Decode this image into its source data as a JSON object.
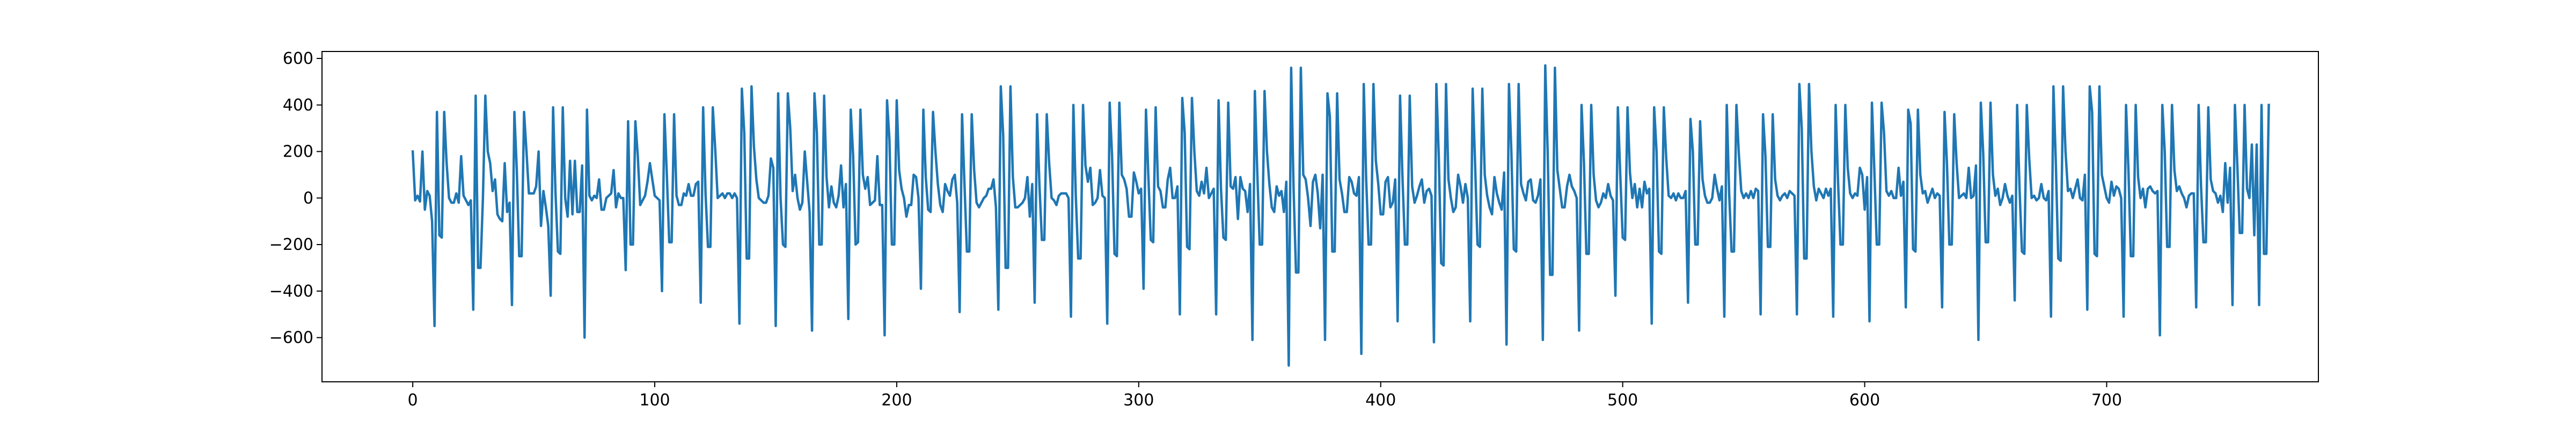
{
  "chart_data": {
    "type": "line",
    "title": "",
    "xlabel": "",
    "ylabel": "",
    "xlim": [
      -37.5,
      787.5
    ],
    "ylim": [
      -790,
      630
    ],
    "x_ticks": [
      0,
      100,
      200,
      300,
      400,
      500,
      600,
      700
    ],
    "y_ticks": [
      -600,
      -400,
      -200,
      0,
      200,
      400,
      600
    ],
    "x_tick_labels": [
      "0",
      "100",
      "200",
      "300",
      "400",
      "500",
      "600",
      "700"
    ],
    "y_tick_labels": [
      "−600",
      "−400",
      "−200",
      "0",
      "200",
      "400",
      "600"
    ],
    "grid": false,
    "legend": "none",
    "line_color": "#1f77b4",
    "series": [
      {
        "x_start": 0,
        "x_step": 1,
        "values": [
          200,
          -10,
          10,
          -15,
          200,
          -50,
          30,
          10,
          -100,
          -550,
          370,
          -160,
          -170,
          370,
          150,
          0,
          -20,
          -20,
          20,
          -20,
          180,
          10,
          -10,
          -30,
          -10,
          -480,
          440,
          -300,
          -300,
          0,
          440,
          200,
          150,
          30,
          80,
          -70,
          -90,
          -100,
          150,
          -60,
          -20,
          -460,
          370,
          120,
          -250,
          -250,
          370,
          200,
          20,
          20,
          20,
          50,
          200,
          -120,
          30,
          -40,
          -120,
          -420,
          390,
          20,
          -230,
          -240,
          390,
          0,
          -80,
          160,
          -70,
          160,
          -60,
          -60,
          140,
          -600,
          380,
          10,
          -10,
          10,
          0,
          80,
          -50,
          -50,
          0,
          10,
          20,
          120,
          -40,
          20,
          0,
          0,
          -310,
          330,
          -200,
          -200,
          330,
          180,
          -30,
          -10,
          10,
          70,
          150,
          80,
          10,
          0,
          -10,
          -400,
          360,
          100,
          -190,
          -190,
          360,
          10,
          -30,
          -30,
          20,
          10,
          60,
          10,
          10,
          60,
          70,
          -450,
          390,
          20,
          -210,
          -210,
          390,
          210,
          0,
          10,
          20,
          0,
          20,
          20,
          0,
          20,
          0,
          -540,
          470,
          280,
          -260,
          -260,
          480,
          220,
          80,
          0,
          -10,
          -20,
          -20,
          10,
          170,
          130,
          -550,
          450,
          0,
          -200,
          -210,
          450,
          300,
          30,
          100,
          0,
          -50,
          -20,
          200,
          70,
          -60,
          -570,
          450,
          280,
          -200,
          -200,
          440,
          90,
          -40,
          50,
          -20,
          -40,
          10,
          140,
          -40,
          60,
          -520,
          380,
          180,
          -200,
          -190,
          380,
          100,
          40,
          90,
          -30,
          -20,
          -10,
          180,
          -30,
          -30,
          -590,
          420,
          250,
          -200,
          -200,
          420,
          120,
          40,
          0,
          -80,
          -30,
          -30,
          100,
          90,
          0,
          -390,
          380,
          90,
          -50,
          -60,
          370,
          200,
          60,
          -30,
          -60,
          60,
          30,
          10,
          80,
          100,
          -20,
          -490,
          360,
          60,
          -230,
          -230,
          360,
          120,
          -20,
          -40,
          -20,
          0,
          10,
          40,
          40,
          80,
          -40,
          -480,
          480,
          270,
          -300,
          -300,
          480,
          90,
          -40,
          -40,
          -30,
          -20,
          0,
          90,
          -80,
          60,
          -450,
          360,
          50,
          -180,
          -180,
          360,
          150,
          0,
          -10,
          -30,
          10,
          20,
          20,
          20,
          0,
          -510,
          400,
          10,
          -260,
          -260,
          400,
          140,
          70,
          130,
          -30,
          -20,
          0,
          120,
          10,
          0,
          -540,
          410,
          180,
          -240,
          -250,
          410,
          100,
          80,
          40,
          -80,
          -80,
          110,
          70,
          20,
          40,
          -390,
          380,
          90,
          -180,
          -190,
          390,
          50,
          30,
          -40,
          -40,
          80,
          130,
          0,
          0,
          50,
          -500,
          430,
          280,
          -210,
          -220,
          430,
          200,
          30,
          10,
          70,
          20,
          130,
          0,
          20,
          40,
          -500,
          420,
          40,
          -170,
          -180,
          410,
          50,
          40,
          90,
          -90,
          90,
          40,
          30,
          -60,
          60,
          -610,
          460,
          110,
          -200,
          -200,
          460,
          200,
          60,
          -40,
          -60,
          50,
          10,
          30,
          -60,
          70,
          -720,
          560,
          40,
          -320,
          -320,
          560,
          100,
          80,
          0,
          -120,
          70,
          100,
          20,
          -130,
          100,
          -610,
          450,
          350,
          -230,
          -230,
          450,
          80,
          20,
          -60,
          -60,
          90,
          70,
          20,
          10,
          90,
          -670,
          490,
          80,
          -200,
          -200,
          490,
          160,
          60,
          -70,
          -70,
          70,
          90,
          -40,
          -20,
          80,
          -530,
          440,
          90,
          -200,
          -200,
          440,
          50,
          -20,
          10,
          50,
          80,
          -20,
          30,
          40,
          10,
          -620,
          490,
          180,
          -280,
          -290,
          490,
          80,
          0,
          -60,
          -40,
          100,
          50,
          -20,
          60,
          0,
          -530,
          470,
          150,
          -200,
          -210,
          470,
          100,
          10,
          -40,
          -70,
          90,
          20,
          -20,
          -50,
          110,
          -630,
          490,
          200,
          -220,
          -230,
          490,
          60,
          20,
          -10,
          70,
          80,
          -10,
          -20,
          10,
          80,
          -610,
          570,
          200,
          -330,
          -330,
          560,
          120,
          40,
          -40,
          -40,
          50,
          100,
          50,
          30,
          0,
          -570,
          400,
          150,
          -240,
          -240,
          400,
          100,
          -10,
          -40,
          -20,
          20,
          0,
          60,
          10,
          -10,
          -420,
          390,
          100,
          -170,
          -180,
          390,
          110,
          0,
          60,
          -40,
          40,
          -40,
          70,
          20,
          40,
          -540,
          390,
          200,
          -230,
          -240,
          390,
          170,
          10,
          0,
          20,
          -10,
          20,
          0,
          0,
          30,
          -450,
          340,
          200,
          -200,
          -200,
          330,
          80,
          10,
          -20,
          -20,
          0,
          100,
          40,
          -10,
          50,
          -510,
          400,
          20,
          -230,
          -230,
          400,
          190,
          30,
          0,
          20,
          0,
          30,
          0,
          40,
          30,
          -500,
          360,
          180,
          -210,
          -210,
          360,
          80,
          10,
          -10,
          10,
          20,
          0,
          30,
          20,
          10,
          -500,
          490,
          300,
          -260,
          -260,
          490,
          200,
          50,
          -10,
          40,
          20,
          0,
          40,
          10,
          40,
          -510,
          400,
          70,
          -200,
          -200,
          400,
          130,
          20,
          0,
          20,
          10,
          130,
          100,
          -50,
          90,
          -530,
          410,
          120,
          -200,
          -200,
          410,
          280,
          30,
          10,
          30,
          0,
          0,
          130,
          10,
          70,
          -470,
          380,
          320,
          -220,
          -230,
          380,
          100,
          20,
          30,
          -20,
          10,
          40,
          0,
          20,
          10,
          -470,
          370,
          150,
          -200,
          -200,
          360,
          150,
          0,
          10,
          20,
          0,
          130,
          0,
          10,
          140,
          -610,
          410,
          190,
          -190,
          -190,
          410,
          100,
          10,
          40,
          -30,
          0,
          60,
          10,
          -20,
          10,
          -440,
          400,
          40,
          -230,
          -240,
          400,
          170,
          0,
          10,
          -10,
          0,
          60,
          0,
          -10,
          30,
          -510,
          480,
          150,
          -260,
          -270,
          480,
          200,
          30,
          40,
          0,
          40,
          80,
          0,
          -10,
          100,
          -480,
          480,
          370,
          -240,
          -250,
          480,
          100,
          50,
          0,
          -20,
          70,
          10,
          50,
          40,
          0,
          -510,
          400,
          120,
          -250,
          -250,
          400,
          90,
          0,
          40,
          -40,
          40,
          50,
          30,
          20,
          30,
          -590,
          400,
          200,
          -210,
          -210,
          400,
          120,
          30,
          50,
          20,
          0,
          -40,
          10,
          20,
          20,
          -470,
          400,
          50,
          -190,
          -190,
          390,
          80,
          30,
          20,
          -20,
          10,
          -60,
          150,
          -20,
          130,
          -460,
          400,
          140,
          -150,
          -150,
          400,
          40,
          0,
          230,
          -160,
          230,
          -460,
          400,
          -240,
          -240,
          400
        ]
      }
    ]
  }
}
